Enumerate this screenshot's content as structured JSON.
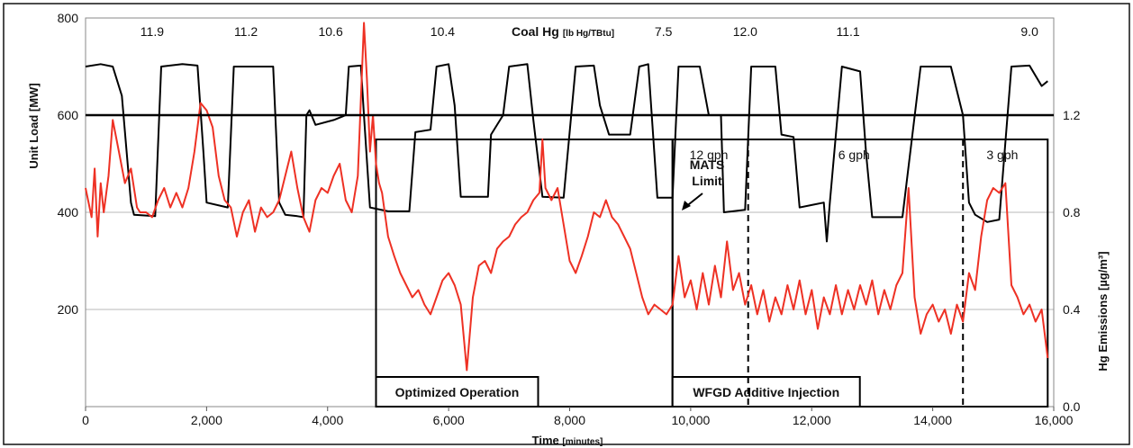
{
  "chart_data": {
    "type": "line",
    "xlabel": "Time",
    "xlabel_unit": "[minutes]",
    "xlim": [
      0,
      16000
    ],
    "x_ticks": [
      "0",
      "2,000",
      "4,000",
      "6,000",
      "8,000",
      "10,000",
      "12,000",
      "14,000",
      "16,000"
    ],
    "y_left": {
      "label": "Unit Load",
      "unit": "[MW]",
      "lim": [
        0,
        800
      ],
      "ticks": [
        "200",
        "400",
        "600",
        "800"
      ]
    },
    "y_right": {
      "label": "Hg Emissions",
      "unit": "[µg/m³]",
      "lim": [
        0.0,
        1.6
      ],
      "ticks": [
        "0.0",
        "0.4",
        "0.8",
        "1.2"
      ]
    },
    "grid": true,
    "coal_hg_title": "Coal Hg",
    "coal_hg_unit": "[lb Hg/TBtu]",
    "coal_hg_labels": [
      {
        "x": 1100,
        "text": "11.9"
      },
      {
        "x": 2650,
        "text": "11.2"
      },
      {
        "x": 4050,
        "text": "10.6"
      },
      {
        "x": 5900,
        "text": "10.4"
      },
      {
        "x": 9550,
        "text": "7.5"
      },
      {
        "x": 10900,
        "text": "12.0"
      },
      {
        "x": 12600,
        "text": "11.1"
      },
      {
        "x": 15600,
        "text": "9.0"
      }
    ],
    "mats_limit": {
      "value": 1.2,
      "label_line1": "MATS",
      "label_line2": "Limit",
      "color": "#000000"
    },
    "regions": [
      {
        "x0": 4800,
        "x1": 9700,
        "label": "Optimized Operation"
      },
      {
        "x0": 9700,
        "x1": 15900,
        "label": "WFGD Additive Injection"
      }
    ],
    "phase_dividers": [
      10950,
      14500
    ],
    "phase_labels": [
      {
        "x": 10300,
        "text": "12 gph"
      },
      {
        "x": 12700,
        "text": "6 gph"
      },
      {
        "x": 15150,
        "text": "3 gph"
      }
    ],
    "series": [
      {
        "axis": "left",
        "color": "#000000",
        "points": [
          [
            0,
            700
          ],
          [
            250,
            705
          ],
          [
            450,
            700
          ],
          [
            600,
            640
          ],
          [
            750,
            420
          ],
          [
            800,
            395
          ],
          [
            1150,
            392
          ],
          [
            1250,
            700
          ],
          [
            1600,
            705
          ],
          [
            1850,
            702
          ],
          [
            1950,
            520
          ],
          [
            2000,
            420
          ],
          [
            2350,
            410
          ],
          [
            2450,
            700
          ],
          [
            2900,
            700
          ],
          [
            3100,
            700
          ],
          [
            3200,
            420
          ],
          [
            3300,
            395
          ],
          [
            3500,
            392
          ],
          [
            3600,
            390
          ],
          [
            3650,
            600
          ],
          [
            3700,
            610
          ],
          [
            3800,
            580
          ],
          [
            4100,
            590
          ],
          [
            4300,
            600
          ],
          [
            4350,
            700
          ],
          [
            4550,
            702
          ],
          [
            4600,
            600
          ],
          [
            4700,
            410
          ],
          [
            5000,
            402
          ],
          [
            5350,
            402
          ],
          [
            5450,
            565
          ],
          [
            5700,
            570
          ],
          [
            5800,
            700
          ],
          [
            6000,
            705
          ],
          [
            6100,
            620
          ],
          [
            6200,
            432
          ],
          [
            6650,
            432
          ],
          [
            6700,
            560
          ],
          [
            6900,
            600
          ],
          [
            7000,
            700
          ],
          [
            7300,
            705
          ],
          [
            7400,
            590
          ],
          [
            7550,
            432
          ],
          [
            7900,
            430
          ],
          [
            8100,
            700
          ],
          [
            8400,
            702
          ],
          [
            8500,
            620
          ],
          [
            8650,
            560
          ],
          [
            9000,
            560
          ],
          [
            9150,
            700
          ],
          [
            9300,
            705
          ],
          [
            9450,
            430
          ],
          [
            9700,
            430
          ],
          [
            9800,
            700
          ],
          [
            10150,
            700
          ],
          [
            10300,
            600
          ],
          [
            10500,
            600
          ],
          [
            10550,
            400
          ],
          [
            10900,
            405
          ],
          [
            11000,
            700
          ],
          [
            11400,
            700
          ],
          [
            11500,
            560
          ],
          [
            11700,
            555
          ],
          [
            11800,
            410
          ],
          [
            12000,
            415
          ],
          [
            12200,
            420
          ],
          [
            12250,
            340
          ],
          [
            12300,
            420
          ],
          [
            12500,
            700
          ],
          [
            12800,
            690
          ],
          [
            12900,
            520
          ],
          [
            13000,
            390
          ],
          [
            13500,
            390
          ],
          [
            13800,
            700
          ],
          [
            14300,
            700
          ],
          [
            14500,
            600
          ],
          [
            14600,
            420
          ],
          [
            14700,
            395
          ],
          [
            14900,
            380
          ],
          [
            15100,
            385
          ],
          [
            15300,
            700
          ],
          [
            15600,
            702
          ],
          [
            15800,
            660
          ],
          [
            15900,
            670
          ]
        ]
      },
      {
        "axis": "right",
        "color": "#ee3124",
        "points": [
          [
            0,
            0.9
          ],
          [
            100,
            0.78
          ],
          [
            150,
            0.98
          ],
          [
            200,
            0.7
          ],
          [
            250,
            0.92
          ],
          [
            300,
            0.8
          ],
          [
            380,
            0.95
          ],
          [
            450,
            1.18
          ],
          [
            550,
            1.05
          ],
          [
            650,
            0.92
          ],
          [
            750,
            0.98
          ],
          [
            850,
            0.82
          ],
          [
            900,
            0.8
          ],
          [
            1000,
            0.8
          ],
          [
            1100,
            0.78
          ],
          [
            1200,
            0.85
          ],
          [
            1300,
            0.9
          ],
          [
            1400,
            0.82
          ],
          [
            1500,
            0.88
          ],
          [
            1600,
            0.82
          ],
          [
            1700,
            0.9
          ],
          [
            1800,
            1.05
          ],
          [
            1900,
            1.25
          ],
          [
            2000,
            1.22
          ],
          [
            2100,
            1.15
          ],
          [
            2200,
            0.95
          ],
          [
            2300,
            0.85
          ],
          [
            2400,
            0.82
          ],
          [
            2500,
            0.7
          ],
          [
            2600,
            0.8
          ],
          [
            2700,
            0.85
          ],
          [
            2800,
            0.72
          ],
          [
            2900,
            0.82
          ],
          [
            3000,
            0.78
          ],
          [
            3100,
            0.8
          ],
          [
            3200,
            0.85
          ],
          [
            3300,
            0.95
          ],
          [
            3400,
            1.05
          ],
          [
            3500,
            0.9
          ],
          [
            3600,
            0.78
          ],
          [
            3700,
            0.72
          ],
          [
            3800,
            0.85
          ],
          [
            3900,
            0.9
          ],
          [
            4000,
            0.88
          ],
          [
            4100,
            0.95
          ],
          [
            4200,
            1.0
          ],
          [
            4300,
            0.85
          ],
          [
            4400,
            0.8
          ],
          [
            4500,
            0.95
          ],
          [
            4600,
            1.58
          ],
          [
            4650,
            1.35
          ],
          [
            4700,
            1.05
          ],
          [
            4750,
            1.2
          ],
          [
            4800,
            1.0
          ],
          [
            4850,
            0.92
          ],
          [
            4900,
            0.88
          ],
          [
            5000,
            0.7
          ],
          [
            5100,
            0.62
          ],
          [
            5200,
            0.55
          ],
          [
            5300,
            0.5
          ],
          [
            5400,
            0.45
          ],
          [
            5500,
            0.48
          ],
          [
            5600,
            0.42
          ],
          [
            5700,
            0.38
          ],
          [
            5800,
            0.45
          ],
          [
            5900,
            0.52
          ],
          [
            6000,
            0.55
          ],
          [
            6100,
            0.5
          ],
          [
            6200,
            0.42
          ],
          [
            6300,
            0.15
          ],
          [
            6400,
            0.45
          ],
          [
            6500,
            0.58
          ],
          [
            6600,
            0.6
          ],
          [
            6700,
            0.55
          ],
          [
            6800,
            0.65
          ],
          [
            6900,
            0.68
          ],
          [
            7000,
            0.7
          ],
          [
            7100,
            0.75
          ],
          [
            7200,
            0.78
          ],
          [
            7300,
            0.8
          ],
          [
            7400,
            0.85
          ],
          [
            7500,
            0.88
          ],
          [
            7550,
            1.1
          ],
          [
            7600,
            0.9
          ],
          [
            7700,
            0.85
          ],
          [
            7800,
            0.9
          ],
          [
            7900,
            0.75
          ],
          [
            8000,
            0.6
          ],
          [
            8100,
            0.55
          ],
          [
            8200,
            0.62
          ],
          [
            8300,
            0.7
          ],
          [
            8400,
            0.8
          ],
          [
            8500,
            0.78
          ],
          [
            8600,
            0.85
          ],
          [
            8700,
            0.78
          ],
          [
            8800,
            0.75
          ],
          [
            8900,
            0.7
          ],
          [
            9000,
            0.65
          ],
          [
            9100,
            0.55
          ],
          [
            9200,
            0.45
          ],
          [
            9300,
            0.38
          ],
          [
            9400,
            0.42
          ],
          [
            9500,
            0.4
          ],
          [
            9600,
            0.38
          ],
          [
            9700,
            0.42
          ],
          [
            9800,
            0.62
          ],
          [
            9900,
            0.45
          ],
          [
            10000,
            0.52
          ],
          [
            10100,
            0.4
          ],
          [
            10200,
            0.55
          ],
          [
            10300,
            0.42
          ],
          [
            10400,
            0.58
          ],
          [
            10500,
            0.45
          ],
          [
            10600,
            0.68
          ],
          [
            10700,
            0.48
          ],
          [
            10800,
            0.55
          ],
          [
            10900,
            0.42
          ],
          [
            11000,
            0.5
          ],
          [
            11100,
            0.38
          ],
          [
            11200,
            0.48
          ],
          [
            11300,
            0.35
          ],
          [
            11400,
            0.45
          ],
          [
            11500,
            0.38
          ],
          [
            11600,
            0.5
          ],
          [
            11700,
            0.4
          ],
          [
            11800,
            0.52
          ],
          [
            11900,
            0.38
          ],
          [
            12000,
            0.48
          ],
          [
            12100,
            0.32
          ],
          [
            12200,
            0.45
          ],
          [
            12300,
            0.38
          ],
          [
            12400,
            0.5
          ],
          [
            12500,
            0.38
          ],
          [
            12600,
            0.48
          ],
          [
            12700,
            0.4
          ],
          [
            12800,
            0.5
          ],
          [
            12900,
            0.42
          ],
          [
            13000,
            0.52
          ],
          [
            13100,
            0.38
          ],
          [
            13200,
            0.48
          ],
          [
            13300,
            0.4
          ],
          [
            13400,
            0.5
          ],
          [
            13500,
            0.55
          ],
          [
            13600,
            0.9
          ],
          [
            13700,
            0.45
          ],
          [
            13800,
            0.3
          ],
          [
            13900,
            0.38
          ],
          [
            14000,
            0.42
          ],
          [
            14100,
            0.35
          ],
          [
            14200,
            0.4
          ],
          [
            14300,
            0.3
          ],
          [
            14400,
            0.42
          ],
          [
            14500,
            0.35
          ],
          [
            14600,
            0.55
          ],
          [
            14700,
            0.48
          ],
          [
            14800,
            0.7
          ],
          [
            14900,
            0.85
          ],
          [
            15000,
            0.9
          ],
          [
            15100,
            0.88
          ],
          [
            15200,
            0.92
          ],
          [
            15300,
            0.5
          ],
          [
            15400,
            0.45
          ],
          [
            15500,
            0.38
          ],
          [
            15600,
            0.42
          ],
          [
            15700,
            0.35
          ],
          [
            15800,
            0.4
          ],
          [
            15900,
            0.2
          ]
        ]
      }
    ]
  }
}
